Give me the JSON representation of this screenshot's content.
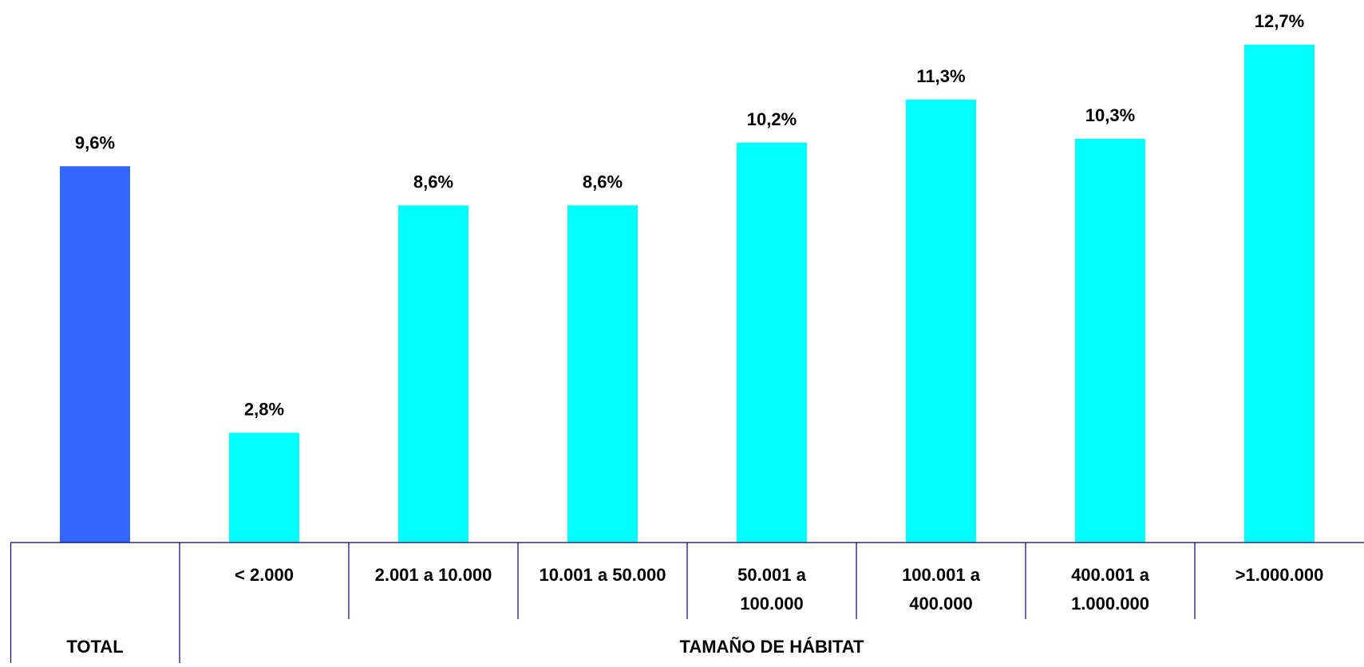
{
  "chart_data": {
    "type": "bar",
    "categories": [
      "TOTAL",
      "< 2.000",
      "2.001 a 10.000",
      "10.001 a 50.000",
      "50.001 a 100.000",
      "100.001 a 400.000",
      "400.001 a 1.000.000",
      ">1.000.000"
    ],
    "category_lines": [
      [
        ""
      ],
      [
        "< 2.000"
      ],
      [
        "2.001 a 10.000"
      ],
      [
        "10.001 a 50.000"
      ],
      [
        "50.001 a",
        "100.000"
      ],
      [
        "100.001 a",
        "400.000"
      ],
      [
        "400.001 a",
        "1.000.000"
      ],
      [
        ">1.000.000"
      ]
    ],
    "values": [
      9.6,
      2.8,
      8.6,
      8.6,
      10.2,
      11.3,
      10.3,
      12.7
    ],
    "data_labels": [
      "9,6%",
      "2,8%",
      "8,6%",
      "8,6%",
      "10,2%",
      "11,3%",
      "10,3%",
      "12,7%"
    ],
    "group_labels": {
      "total": "TOTAL",
      "habitat": "TAMAÑO DE HÁBITAT"
    },
    "colors": {
      "total": "#3366FF",
      "other": "#00FFFF",
      "grid_line": "#000080"
    },
    "ylim": [
      0,
      12.7
    ],
    "grid": false,
    "legend": "none"
  }
}
